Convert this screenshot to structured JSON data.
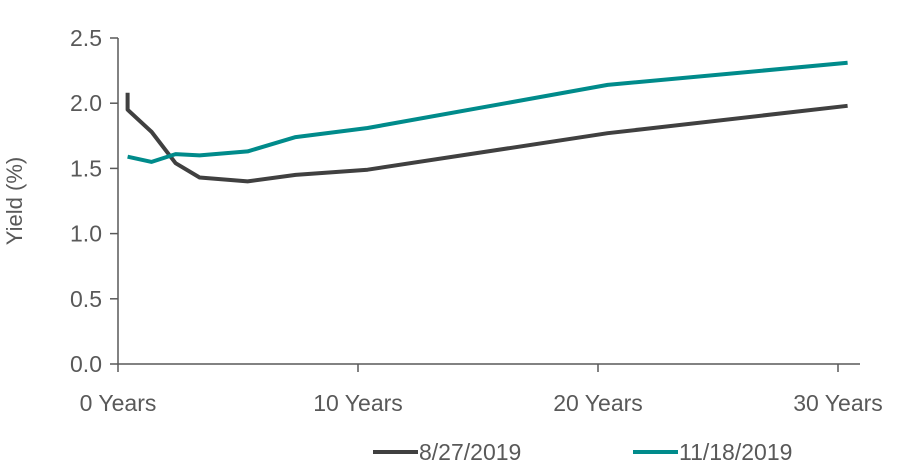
{
  "chart_data": {
    "type": "line",
    "ylabel": "Yield (%)",
    "xlabel": "",
    "xlim": [
      0,
      30.5
    ],
    "ylim": [
      0,
      2.5
    ],
    "x_ticks": [
      {
        "value": 0,
        "label": "0 Years"
      },
      {
        "value": 10,
        "label": "10 Years"
      },
      {
        "value": 20,
        "label": "20 Years"
      },
      {
        "value": 30,
        "label": "30 Years"
      }
    ],
    "y_ticks": [
      {
        "value": 0,
        "label": "0.0"
      },
      {
        "value": 0.5,
        "label": "0.5"
      },
      {
        "value": 1.0,
        "label": "1.0"
      },
      {
        "value": 1.5,
        "label": "1.5"
      },
      {
        "value": 2.0,
        "label": "2.0"
      },
      {
        "value": 2.5,
        "label": "2.5"
      }
    ],
    "grid": false,
    "legend_position": "bottom-right",
    "series": [
      {
        "name": "8/27/2019",
        "color": "#404040",
        "x": [
          0.4,
          0.4,
          1.4,
          2.4,
          3.4,
          5.4,
          7.4,
          10.4,
          20.4,
          30.4
        ],
        "y": [
          2.08,
          1.95,
          1.78,
          1.54,
          1.43,
          1.4,
          1.45,
          1.49,
          1.77,
          1.98
        ]
      },
      {
        "name": "11/18/2019",
        "color": "#008B8B",
        "x": [
          0.4,
          1.4,
          2.4,
          3.4,
          5.4,
          7.4,
          10.4,
          20.4,
          30.4
        ],
        "y": [
          1.59,
          1.55,
          1.61,
          1.6,
          1.63,
          1.74,
          1.81,
          2.14,
          2.31
        ]
      }
    ]
  }
}
